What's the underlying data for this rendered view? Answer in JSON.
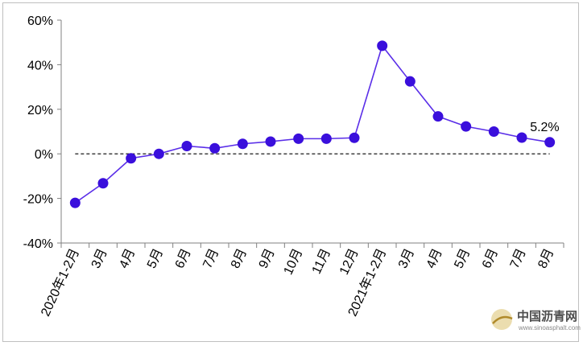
{
  "chart_data": {
    "type": "line",
    "categories": [
      "2020年1-2月",
      "3月",
      "4月",
      "5月",
      "6月",
      "7月",
      "8月",
      "9月",
      "10月",
      "11月",
      "12月",
      "2021年1-2月",
      "3月",
      "4月",
      "5月",
      "6月",
      "7月",
      "8月"
    ],
    "series": [
      {
        "values": [
          -22,
          -13.2,
          -2,
          0,
          3.5,
          2.5,
          4.5,
          5.5,
          6.8,
          6.8,
          7.2,
          48.5,
          32.5,
          16.8,
          12.3,
          10,
          7.3,
          5.2
        ]
      }
    ],
    "ylim": [
      -40,
      60
    ],
    "yticks": [
      -40,
      -20,
      0,
      20,
      40,
      60
    ],
    "ytick_labels": [
      "-40%",
      "-20%",
      "0%",
      "20%",
      "40%",
      "60%"
    ],
    "annotation": {
      "text": "5.2%",
      "point_index": 17
    },
    "reference_line": {
      "y": 0,
      "style": "dashed"
    },
    "line_color": "#5a2ee8",
    "marker_color": "#3a0fdc",
    "title": "",
    "xlabel": "",
    "ylabel": "",
    "grid": false,
    "legend": "none"
  },
  "watermark": {
    "name": "中国沥青网",
    "url": "www.sinoasphalt.com"
  }
}
